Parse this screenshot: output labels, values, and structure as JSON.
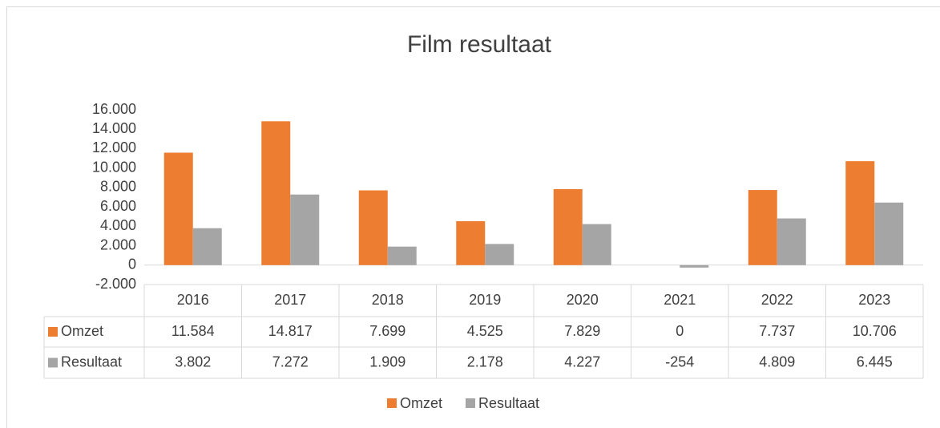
{
  "chart_data": {
    "type": "bar",
    "title": "Film resultaat",
    "categories": [
      "2016",
      "2017",
      "2018",
      "2019",
      "2020",
      "2021",
      "2022",
      "2023"
    ],
    "series": [
      {
        "name": "Omzet",
        "color": "#ed7d31",
        "values": [
          11584,
          14817,
          7699,
          4525,
          7829,
          0,
          7737,
          10706
        ],
        "value_labels": [
          "11.584",
          "14.817",
          "7.699",
          "4.525",
          "7.829",
          "0",
          "7.737",
          "10.706"
        ]
      },
      {
        "name": "Resultaat",
        "color": "#a5a5a5",
        "values": [
          3802,
          7272,
          1909,
          2178,
          4227,
          -254,
          4809,
          6445
        ],
        "value_labels": [
          "3.802",
          "7.272",
          "1.909",
          "2.178",
          "4.227",
          "-254",
          "4.809",
          "6.445"
        ]
      }
    ],
    "ylim": [
      -2000,
      16000
    ],
    "yticks": [
      {
        "value": -2000,
        "label": "-2.000"
      },
      0,
      {
        "value": 2000,
        "label": "2.000"
      },
      {
        "value": 4000,
        "label": "4.000"
      },
      {
        "value": 6000,
        "label": "6.000"
      },
      {
        "value": 8000,
        "label": "8.000"
      },
      {
        "value": 10000,
        "label": "10.000"
      },
      {
        "value": 12000,
        "label": "12.000"
      },
      {
        "value": 14000,
        "label": "14.000"
      },
      {
        "value": 16000,
        "label": "16.000"
      }
    ],
    "grid": false
  }
}
